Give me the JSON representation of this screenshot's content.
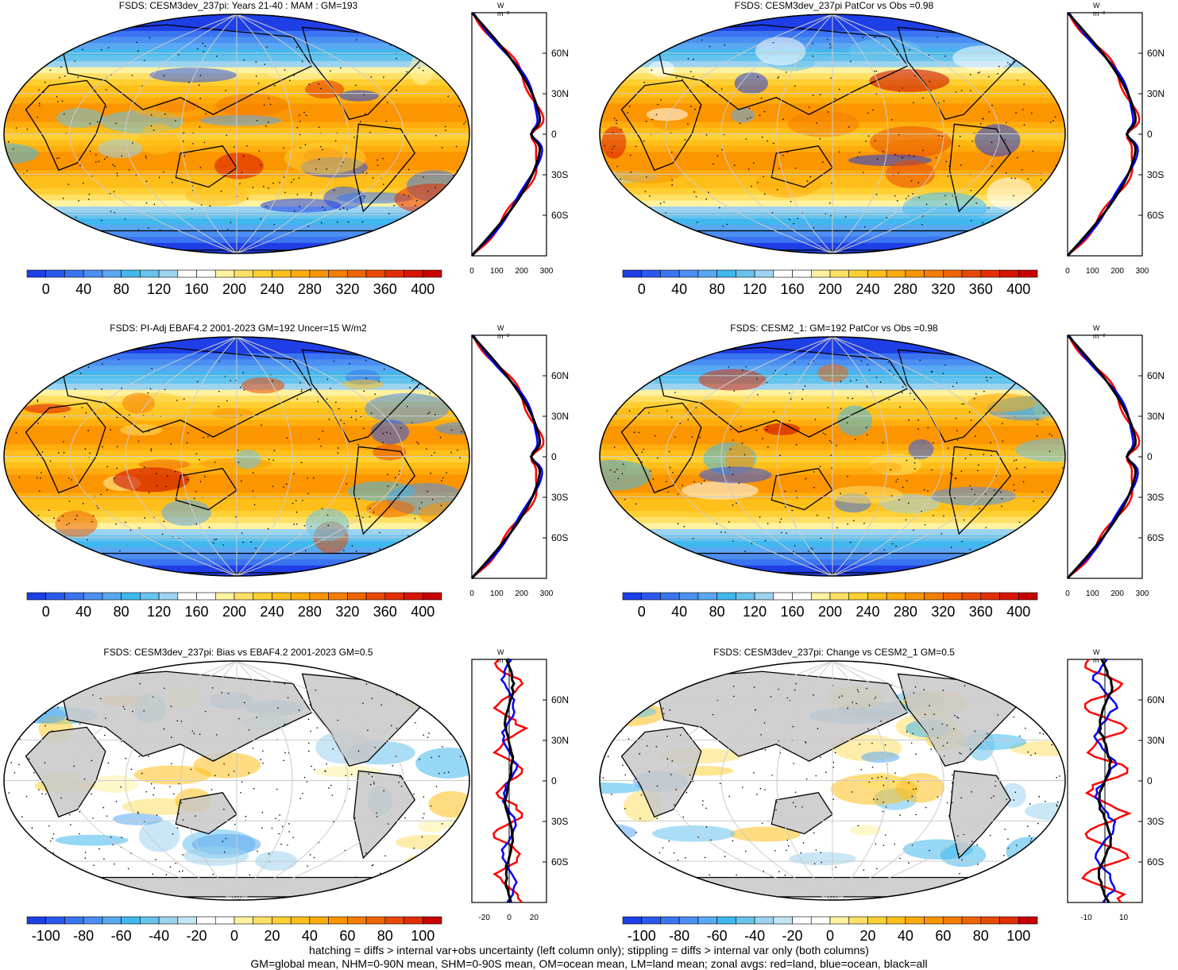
{
  "panels": [
    {
      "title": "FSDS: CESM3dev_237pi: Years 21-40 : MAM : GM=193",
      "cb_labels": [
        "0",
        "40",
        "80",
        "120",
        "160",
        "200",
        "240",
        "280",
        "320",
        "360",
        "400"
      ],
      "zonal_xticks": [
        "0",
        "100",
        "200",
        "300"
      ],
      "zonal_lat_labels": [
        "60N",
        "30N",
        "0",
        "30S",
        "60S"
      ],
      "zonal_unit": "W m⁻²",
      "map_type": "full"
    },
    {
      "title": "FSDS: CESM3dev_237pi PatCor vs Obs =0.98",
      "cb_labels": [
        "0",
        "40",
        "80",
        "120",
        "160",
        "200",
        "240",
        "280",
        "320",
        "360",
        "400"
      ],
      "zonal_xticks": [
        "0",
        "100",
        "200",
        "300"
      ],
      "zonal_lat_labels": [
        "60N",
        "30N",
        "0",
        "30S",
        "60S"
      ],
      "zonal_unit": "W m⁻²",
      "map_type": "full"
    },
    {
      "title": "FSDS: PI-Adj EBAF4.2 2001-2023 GM=192 Uncer=15 W/m2",
      "cb_labels": [
        "0",
        "40",
        "80",
        "120",
        "160",
        "200",
        "240",
        "280",
        "320",
        "360",
        "400"
      ],
      "zonal_xticks": [
        "0",
        "100",
        "200",
        "300"
      ],
      "zonal_lat_labels": [
        "60N",
        "30N",
        "0",
        "30S",
        "60S"
      ],
      "zonal_unit": "W m⁻²",
      "map_type": "full"
    },
    {
      "title": "FSDS: CESM2_1: GM=192 PatCor vs Obs =0.98",
      "cb_labels": [
        "0",
        "40",
        "80",
        "120",
        "160",
        "200",
        "240",
        "280",
        "320",
        "360",
        "400"
      ],
      "zonal_xticks": [
        "0",
        "100",
        "200",
        "300"
      ],
      "zonal_lat_labels": [
        "60N",
        "30N",
        "0",
        "30S",
        "60S"
      ],
      "zonal_unit": "W m⁻²",
      "map_type": "full"
    },
    {
      "title": "FSDS: CESM3dev_237pi: Bias vs EBAF4.2 2001-2023 GM=0.5",
      "cb_labels": [
        "-100",
        "-80",
        "-60",
        "-40",
        "-20",
        "0",
        "20",
        "40",
        "60",
        "80",
        "100"
      ],
      "zonal_xticks": [
        "-20",
        "0",
        "20"
      ],
      "zonal_lat_labels": [
        "60N",
        "30N",
        "0",
        "30S",
        "60S"
      ],
      "zonal_unit": "W m⁻²",
      "map_type": "diff"
    },
    {
      "title": "FSDS: CESM3dev_237pi: Change vs CESM2_1 GM=0.5",
      "cb_labels": [
        "-100",
        "-80",
        "-60",
        "-40",
        "-20",
        "0",
        "20",
        "40",
        "60",
        "80",
        "100"
      ],
      "zonal_xticks": [
        "-10",
        "10"
      ],
      "zonal_lat_labels": [
        "60N",
        "30N",
        "0",
        "30S",
        "60S"
      ],
      "zonal_unit": "W m⁻²",
      "map_type": "diff"
    }
  ],
  "footer": {
    "line1": "hatching = diffs > internal var+obs uncertainty (left column only); stippling = diffs > internal var only (both columns)",
    "line2": "GM=global mean, NHM=0-90N mean, SHM=0-90S mean, OM=ocean mean, LM=land mean; zonal avgs: red=land, blue=ocean, black=all"
  },
  "colors": {
    "full_scale": [
      "#1e3ee6",
      "#2b58ec",
      "#3b74f0",
      "#4b8ff2",
      "#5aa8f3",
      "#3fb8ee",
      "#66c3ee",
      "#9dd3ef",
      "#ffffff",
      "#ffffff",
      "#fff2a0",
      "#ffe066",
      "#ffd033",
      "#ffbf1a",
      "#ffac0d",
      "#fb9500",
      "#f57e00",
      "#ef6400",
      "#e84a00",
      "#e22e00",
      "#d81400",
      "#c80000"
    ],
    "diff_scale": [
      "#1e3ee6",
      "#2b58ec",
      "#3b74f0",
      "#4b8ff2",
      "#5aa8f3",
      "#3fb8ee",
      "#66c3ee",
      "#9dd3ef",
      "#c4e4f4",
      "#ffffff",
      "#ffffff",
      "#fff2a0",
      "#ffe066",
      "#ffd033",
      "#ffbf1a",
      "#ffac0d",
      "#fb9500",
      "#f57e00",
      "#ef6400",
      "#e84a00",
      "#e22e00",
      "#c80000"
    ],
    "land": "#c8c8c8",
    "zonal_land": "#ff0000",
    "zonal_ocean": "#0000ff",
    "zonal_all": "#000000"
  },
  "chart_data": [
    {
      "type": "heatmap",
      "title": "FSDS: CESM3dev_237pi: Years 21-40 : MAM : GM=193",
      "colorbar": [
        0,
        40,
        80,
        120,
        160,
        200,
        240,
        280,
        320,
        360,
        400
      ],
      "zonal_xlim": [
        0,
        300
      ]
    },
    {
      "type": "heatmap",
      "title": "FSDS: CESM3dev_237pi PatCor vs Obs =0.98",
      "colorbar": [
        0,
        40,
        80,
        120,
        160,
        200,
        240,
        280,
        320,
        360,
        400
      ],
      "zonal_xlim": [
        0,
        300
      ]
    },
    {
      "type": "heatmap",
      "title": "FSDS: PI-Adj EBAF4.2 2001-2023 GM=192 Uncer=15 W/m2",
      "colorbar": [
        0,
        40,
        80,
        120,
        160,
        200,
        240,
        280,
        320,
        360,
        400
      ],
      "zonal_xlim": [
        0,
        300
      ]
    },
    {
      "type": "heatmap",
      "title": "FSDS: CESM2_1: GM=192 PatCor vs Obs =0.98",
      "colorbar": [
        0,
        40,
        80,
        120,
        160,
        200,
        240,
        280,
        320,
        360,
        400
      ],
      "zonal_xlim": [
        0,
        300
      ]
    },
    {
      "type": "heatmap",
      "title": "FSDS: CESM3dev_237pi: Bias vs EBAF4.2 2001-2023 GM=0.5",
      "colorbar": [
        -100,
        -80,
        -60,
        -40,
        -20,
        0,
        20,
        40,
        60,
        80,
        100
      ],
      "zonal_xlim": [
        -30,
        30
      ]
    },
    {
      "type": "heatmap",
      "title": "FSDS: CESM3dev_237pi: Change vs CESM2_1 GM=0.5",
      "colorbar": [
        -100,
        -80,
        -60,
        -40,
        -20,
        0,
        20,
        40,
        60,
        80,
        100
      ],
      "zonal_xlim": [
        -20,
        20
      ]
    }
  ]
}
